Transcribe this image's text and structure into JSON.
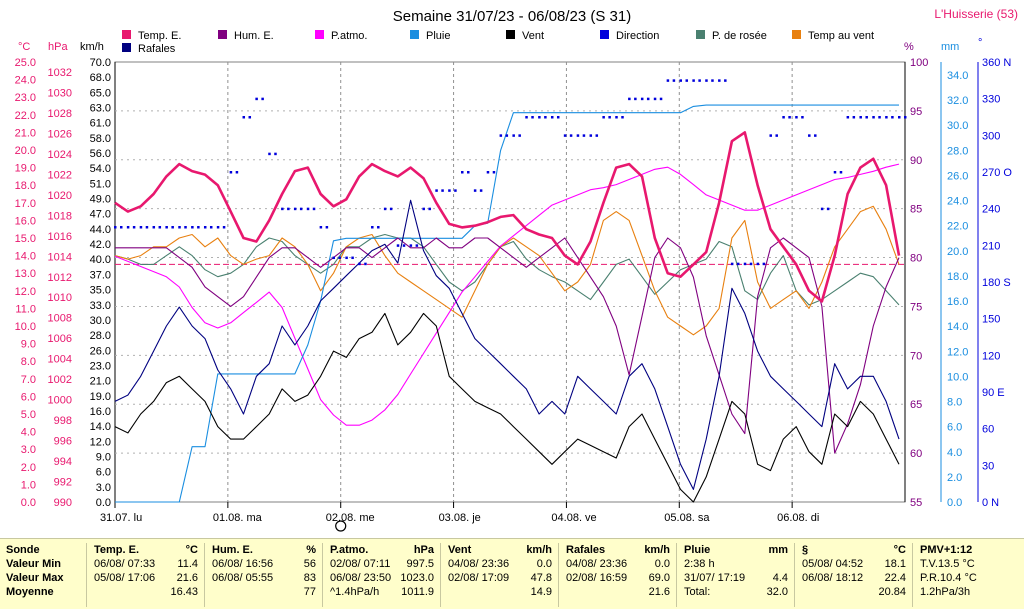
{
  "header": {
    "title": "Semaine 31/07/23 - 06/08/23 (S 31)",
    "station": "L'Huisserie (53)"
  },
  "legend": [
    {
      "label": "Temp. E.",
      "color": "#e8186e"
    },
    {
      "label": "Hum. E.",
      "color": "#800080"
    },
    {
      "label": "P.atmo.",
      "color": "#ff00ff"
    },
    {
      "label": "Pluie",
      "color": "#1a8ee0"
    },
    {
      "label": "Vent",
      "color": "#000000"
    },
    {
      "label": "Direction",
      "color": "#0000dc"
    },
    {
      "label": "P. de rosée",
      "color": "#4a8070"
    },
    {
      "label": "Temp au vent",
      "color": "#e88010"
    },
    {
      "label": "Rafales",
      "color": "#000080"
    }
  ],
  "chart_data": {
    "type": "line",
    "x_ticks": [
      "31.07. lu",
      "01.08. ma",
      "02.08. me",
      "03.08. je",
      "04.08. ve",
      "05.08. sa",
      "06.08. di"
    ],
    "axes": {
      "temp_c": {
        "unit": "°C",
        "color": "#e8186e",
        "ticks": [
          "25.0",
          "24.0",
          "23.0",
          "22.0",
          "21.0",
          "20.0",
          "19.0",
          "18.0",
          "17.0",
          "16.0",
          "15.0",
          "14.0",
          "13.0",
          "12.0",
          "11.0",
          "10.0",
          "9.0",
          "8.0",
          "7.0",
          "6.0",
          "5.0",
          "4.0",
          "3.0",
          "2.0",
          "1.0",
          "0.0"
        ]
      },
      "pressure_hpa": {
        "unit": "hPa",
        "color": "#e8186e",
        "ticks": [
          "1032",
          "1030",
          "1028",
          "1026",
          "1024",
          "1022",
          "1020",
          "1018",
          "1016",
          "1014",
          "1012",
          "1010",
          "1008",
          "1006",
          "1004",
          "1002",
          "1000",
          "998",
          "996",
          "994",
          "992",
          "990"
        ]
      },
      "wind_kmh": {
        "unit": "km/h",
        "color": "#000000",
        "ticks": [
          "70.0",
          "68.0",
          "65.0",
          "63.0",
          "61.0",
          "58.0",
          "56.0",
          "54.0",
          "51.0",
          "49.0",
          "47.0",
          "44.0",
          "42.0",
          "40.0",
          "37.0",
          "35.0",
          "33.0",
          "30.0",
          "28.0",
          "26.0",
          "23.0",
          "21.0",
          "19.0",
          "16.0",
          "14.0",
          "12.0",
          "9.0",
          "6.0",
          "3.0",
          "0.0"
        ]
      },
      "humidity_pct": {
        "unit": "%",
        "color": "#800080",
        "ticks": [
          "100",
          "95",
          "90",
          "85",
          "80",
          "75",
          "70",
          "65",
          "60",
          "55"
        ]
      },
      "rain_mm": {
        "unit": "mm",
        "color": "#1a8ee0",
        "ticks": [
          "34.0",
          "32.0",
          "30.0",
          "28.0",
          "26.0",
          "24.0",
          "22.0",
          "20.0",
          "18.0",
          "16.0",
          "14.0",
          "12.0",
          "10.0",
          "8.0",
          "6.0",
          "4.0",
          "2.0",
          "0.0"
        ]
      },
      "direction_deg": {
        "unit": "°",
        "color": "#0000dc",
        "ticks": [
          "360 N",
          "330",
          "300",
          "270 O",
          "240",
          "210",
          "180 S",
          "150",
          "120",
          "90 E",
          "60",
          "30",
          "0 N"
        ]
      }
    },
    "series": [
      {
        "name": "Temp. E.",
        "axis": "temp_c",
        "values": [
          17.0,
          16.5,
          16.8,
          17.5,
          18.5,
          19.2,
          18.8,
          18.6,
          18.0,
          16.5,
          15.0,
          14.8,
          16.0,
          17.5,
          18.8,
          19.0,
          17.5,
          16.8,
          17.2,
          18.5,
          19.2,
          18.8,
          18.5,
          19.0,
          18.4,
          17.0,
          15.8,
          15.6,
          15.7,
          15.9,
          16.2,
          16.3,
          15.5,
          15.2,
          15.0,
          14.0,
          13.5,
          14.8,
          17.0,
          19.0,
          19.2,
          18.5,
          15.0,
          13.0,
          12.8,
          13.5,
          14.2,
          17.0,
          20.5,
          21.0,
          18.0,
          15.5,
          14.5,
          13.5,
          12.0,
          11.4,
          14.0,
          17.5,
          19.0,
          19.5,
          18.0,
          14.0
        ]
      },
      {
        "name": "Hum. E.",
        "axis": "humidity_pct",
        "values": [
          81,
          81,
          81,
          81,
          81,
          80,
          79,
          77,
          76,
          75,
          76,
          78,
          80,
          81,
          81,
          80,
          79,
          80,
          81,
          81,
          80,
          81,
          82,
          81,
          81,
          82,
          81,
          81,
          82,
          82,
          81,
          80,
          79,
          80,
          81,
          82,
          80,
          78,
          76,
          73,
          68,
          74,
          80,
          82,
          81,
          78,
          72,
          68,
          64,
          62,
          76,
          81,
          82,
          81,
          80,
          75,
          60,
          63,
          67,
          73,
          77,
          80
        ]
      },
      {
        "name": "P.atmo.",
        "axis": "pressure_hpa",
        "values": [
          1014,
          1013.5,
          1013,
          1012.5,
          1012,
          1011,
          1009,
          1007.5,
          1007,
          1007.5,
          1008.5,
          1009.5,
          1010.5,
          1009,
          1006,
          1003,
          1000,
          998.5,
          997.5,
          997.5,
          998,
          999,
          1000.5,
          1002.5,
          1004.5,
          1006.5,
          1008.5,
          1010.5,
          1012,
          1013.5,
          1015,
          1016,
          1017,
          1018,
          1019,
          1019.5,
          1020,
          1020.5,
          1020.7,
          1021,
          1021.5,
          1022,
          1022.5,
          1022.7,
          1022,
          1021,
          1020,
          1019.5,
          1019,
          1018.5,
          1018.5,
          1019,
          1019.5,
          1020,
          1020.5,
          1021,
          1021.5,
          1021.7,
          1022,
          1022.3,
          1022.7,
          1023
        ]
      },
      {
        "name": "Pluie",
        "axis": "rain_mm",
        "values": [
          0,
          0,
          0,
          0,
          0,
          0,
          4.4,
          4.4,
          10.2,
          10.2,
          10.2,
          10.2,
          10.2,
          10.2,
          10.2,
          12.5,
          16.0,
          20.8,
          21.0,
          21.0,
          21.0,
          21.0,
          21.0,
          21.0,
          21.0,
          21.0,
          21.0,
          21.0,
          22.0,
          22.2,
          28.0,
          31.0,
          31.0,
          31.0,
          31.0,
          31.0,
          31.0,
          31.0,
          31.0,
          31.0,
          31.0,
          31.0,
          31.0,
          31.0,
          31.0,
          31.5,
          31.6,
          31.6,
          31.6,
          31.6,
          31.6,
          31.6,
          31.6,
          31.6,
          31.6,
          31.6,
          31.6,
          31.6,
          31.6,
          31.6,
          31.6,
          31.6
        ]
      },
      {
        "name": "Vent",
        "axis": "wind_kmh",
        "values": [
          12,
          11,
          14,
          16,
          19,
          20,
          18,
          16,
          12,
          10,
          10,
          12,
          14,
          18,
          16,
          17,
          20,
          24,
          23,
          26,
          27,
          30,
          25,
          27,
          30,
          28,
          20,
          18,
          16,
          15,
          14,
          12,
          10,
          8,
          6,
          8,
          10,
          9,
          8,
          7,
          12,
          14,
          10,
          6,
          2,
          0,
          4,
          10,
          16,
          14,
          6,
          5,
          10,
          12,
          8,
          6,
          14,
          12,
          16,
          14,
          10,
          6
        ]
      },
      {
        "name": "Rafales",
        "axis": "wind_kmh",
        "values": [
          16,
          17,
          20,
          24,
          28,
          31,
          28,
          26,
          21,
          18,
          14,
          20,
          22,
          28,
          25,
          28,
          32,
          34,
          36,
          38,
          40,
          41,
          38,
          48,
          40,
          36,
          34,
          30,
          26,
          24,
          22,
          20,
          18,
          14,
          16,
          14,
          20,
          18,
          16,
          14,
          20,
          22,
          18,
          12,
          6,
          2,
          10,
          20,
          34,
          30,
          24,
          20,
          18,
          16,
          14,
          12,
          22,
          18,
          20,
          20,
          16,
          10
        ]
      },
      {
        "name": "P. de rosée",
        "axis": "temp_c",
        "values": [
          14.0,
          13.8,
          13.5,
          13.5,
          14.0,
          14.5,
          14.0,
          13.2,
          12.8,
          13.0,
          13.5,
          14.5,
          15.0,
          14.8,
          14.0,
          13.5,
          13.0,
          13.5,
          14.5,
          14.5,
          15.0,
          15.2,
          15.0,
          15.0,
          14.5,
          13.5,
          12.5,
          12.0,
          12.5,
          13.5,
          14.5,
          14.8,
          13.8,
          13.2,
          12.8,
          12.5,
          12.0,
          11.5,
          12.5,
          13.5,
          13.8,
          12.8,
          11.8,
          12.5,
          13.2,
          13.5,
          13.8,
          14.8,
          14.5,
          12.0,
          11.5,
          13.0,
          14.0,
          12.0,
          11.2,
          11.5,
          12.0,
          12.5,
          13.0,
          12.8,
          12.0,
          11.2
        ]
      },
      {
        "name": "Temp au vent",
        "axis": "temp_c",
        "values": [
          14.0,
          13.8,
          14.0,
          14.5,
          14.5,
          15.0,
          15.2,
          14.5,
          15.0,
          14.0,
          13.5,
          13.8,
          14.0,
          15.0,
          14.5,
          13.5,
          12.0,
          13.0,
          14.5,
          15.0,
          15.2,
          14.0,
          13.0,
          12.5,
          12.0,
          11.5,
          11.0,
          10.5,
          12.0,
          13.5,
          14.5,
          15.0,
          14.5,
          14.0,
          13.0,
          12.0,
          12.5,
          13.5,
          16.0,
          16.5,
          16.0,
          14.0,
          12.0,
          10.5,
          10.0,
          9.5,
          10.0,
          11.0,
          15.0,
          16.0,
          12.5,
          11.0,
          11.5,
          12.0,
          11.0,
          12.5,
          14.5,
          15.5,
          16.5,
          16.8,
          15.5,
          13.5
        ]
      },
      {
        "name": "Direction",
        "axis": "direction_deg",
        "marker": "dots",
        "values": [
          225,
          225,
          225,
          225,
          225,
          225,
          225,
          225,
          225,
          270,
          315,
          330,
          285,
          240,
          240,
          240,
          225,
          200,
          200,
          195,
          225,
          240,
          210,
          210,
          240,
          255,
          255,
          270,
          255,
          270,
          300,
          300,
          315,
          315,
          315,
          300,
          300,
          300,
          315,
          315,
          330,
          330,
          330,
          345,
          345,
          345,
          345,
          345,
          195,
          195,
          195,
          300,
          315,
          315,
          300,
          240,
          270,
          315,
          315,
          315,
          315,
          315
        ]
      }
    ],
    "reference_line": {
      "axis": "temp_c",
      "value": 13.5,
      "color": "#e8186e"
    }
  },
  "stats": {
    "row_labels": [
      "Sonde",
      "Valeur Min",
      "Valeur Max",
      "Moyenne"
    ],
    "sections": [
      {
        "title": "Temp. E.",
        "unit": "°C",
        "min": [
          "06/08/ 07:33",
          "11.4"
        ],
        "max": [
          "05/08/ 17:06",
          "21.6"
        ],
        "avg": [
          "",
          "16.43"
        ]
      },
      {
        "title": "Hum. E.",
        "unit": "%",
        "min": [
          "06/08/ 16:56",
          "56"
        ],
        "max": [
          "06/08/ 05:55",
          "83"
        ],
        "avg": [
          "",
          "77"
        ]
      },
      {
        "title": "P.atmo.",
        "unit": "hPa",
        "min": [
          "02/08/ 07:11",
          "997.5"
        ],
        "max": [
          "06/08/ 23:50",
          "1023.0"
        ],
        "avg": [
          "^1.4hPa/h",
          "1011.9"
        ]
      },
      {
        "title": "Vent",
        "unit": "km/h",
        "min": [
          "04/08/ 23:36",
          "0.0"
        ],
        "max": [
          "02/08/ 17:09",
          "47.8"
        ],
        "avg": [
          "",
          "14.9"
        ]
      },
      {
        "title": "Rafales",
        "unit": "km/h",
        "min": [
          "04/08/ 23:36",
          "0.0"
        ],
        "max": [
          "02/08/ 16:59",
          "69.0"
        ],
        "avg": [
          "",
          "21.6"
        ]
      },
      {
        "title": "Pluie",
        "unit": "mm",
        "min": [
          "2:38 h",
          ""
        ],
        "max": [
          "31/07/ 17:19",
          "4.4"
        ],
        "avg": [
          "Total:",
          "32.0"
        ]
      },
      {
        "title": "§",
        "unit": "°C",
        "min": [
          "05/08/ 04:52",
          "18.1"
        ],
        "max": [
          "06/08/ 18:12",
          "22.4"
        ],
        "avg": [
          "",
          "20.84"
        ]
      },
      {
        "title": "PMV+1:12",
        "unit": "",
        "min": [
          "T.V.13.5 °C",
          ""
        ],
        "max": [
          "P.R.10.4 °C",
          ""
        ],
        "avg": [
          "1.2hPa/3h",
          ""
        ]
      }
    ]
  }
}
